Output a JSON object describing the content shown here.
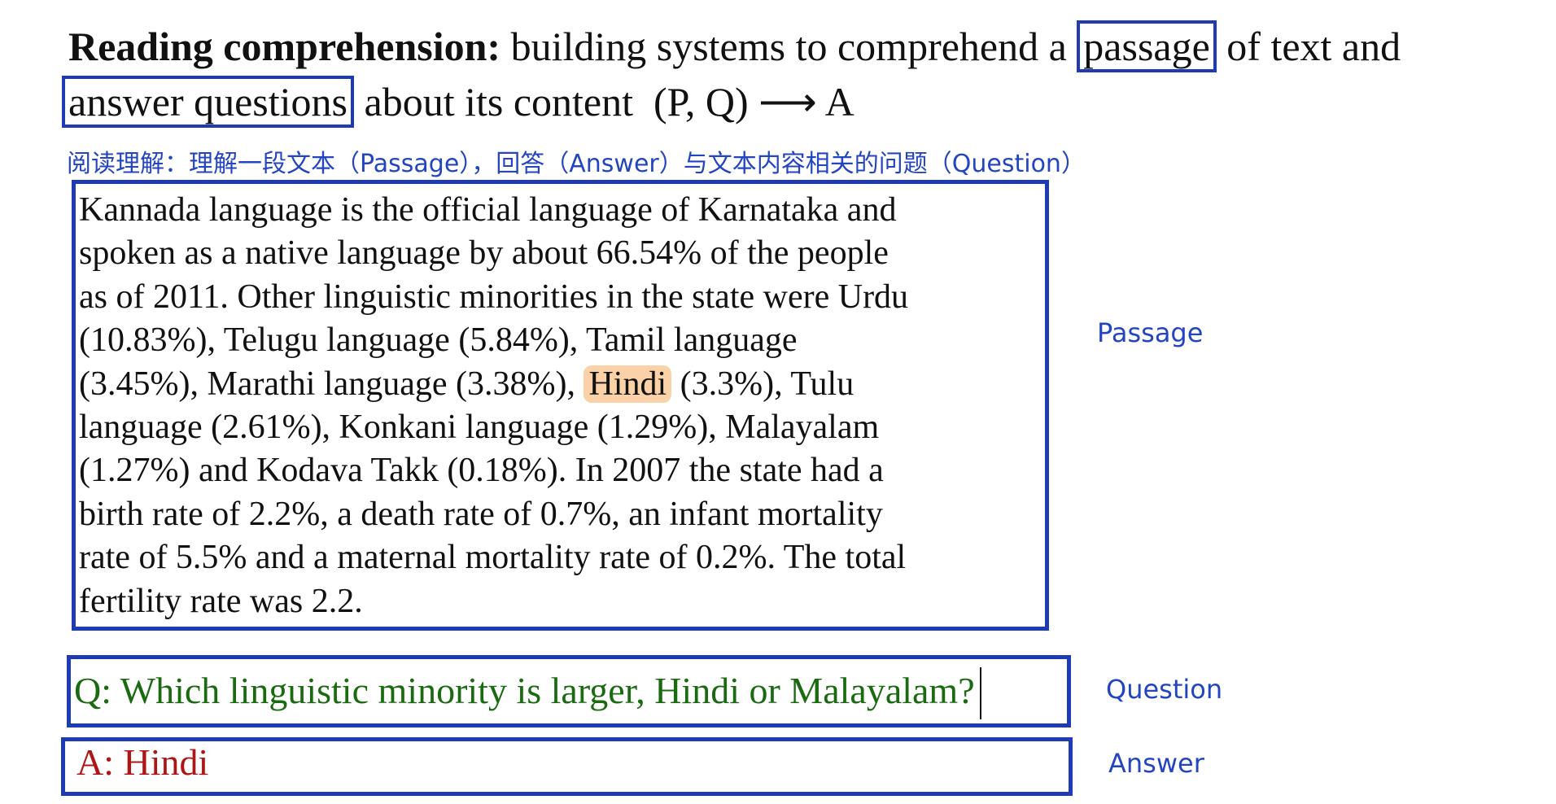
{
  "heading": {
    "term": "Reading comprehension:",
    "text1": "building systems to comprehend a",
    "boxed1": "passage",
    "text2": "of text and",
    "boxed2": "answer questions",
    "text3": "about its content",
    "formula": "(P, Q) ⟶ A"
  },
  "subtitle_zh": "阅读理解：理解一段文本（Passage），回答（Answer）与文本内容相关的问题（Question）",
  "passage": {
    "lines": [
      "Kannada language is the official language of Karnataka and",
      "spoken as a native language by about 66.54% of the people",
      "as of 2011. Other linguistic minorities in the state were Urdu",
      "(10.83%), Telugu language (5.84%), Tamil language",
      {
        "before": "(3.45%), Marathi language (3.38%),",
        "highlight": "Hindi",
        "after": "(3.3%), Tulu"
      },
      "language (2.61%), Konkani language (1.29%), Malayalam",
      "(1.27%) and Kodava Takk (0.18%). In 2007 the state had a",
      "birth rate of 2.2%, a death rate of 0.7%, an infant mortality",
      "rate of 5.5% and a maternal mortality rate of 0.2%. The total",
      "fertility rate was 2.2."
    ]
  },
  "question": "Q: Which linguistic minority is larger, Hindi or Malayalam?",
  "answer": "A: Hindi",
  "labels": {
    "passage": "Passage",
    "question": "Question",
    "answer": "Answer"
  }
}
